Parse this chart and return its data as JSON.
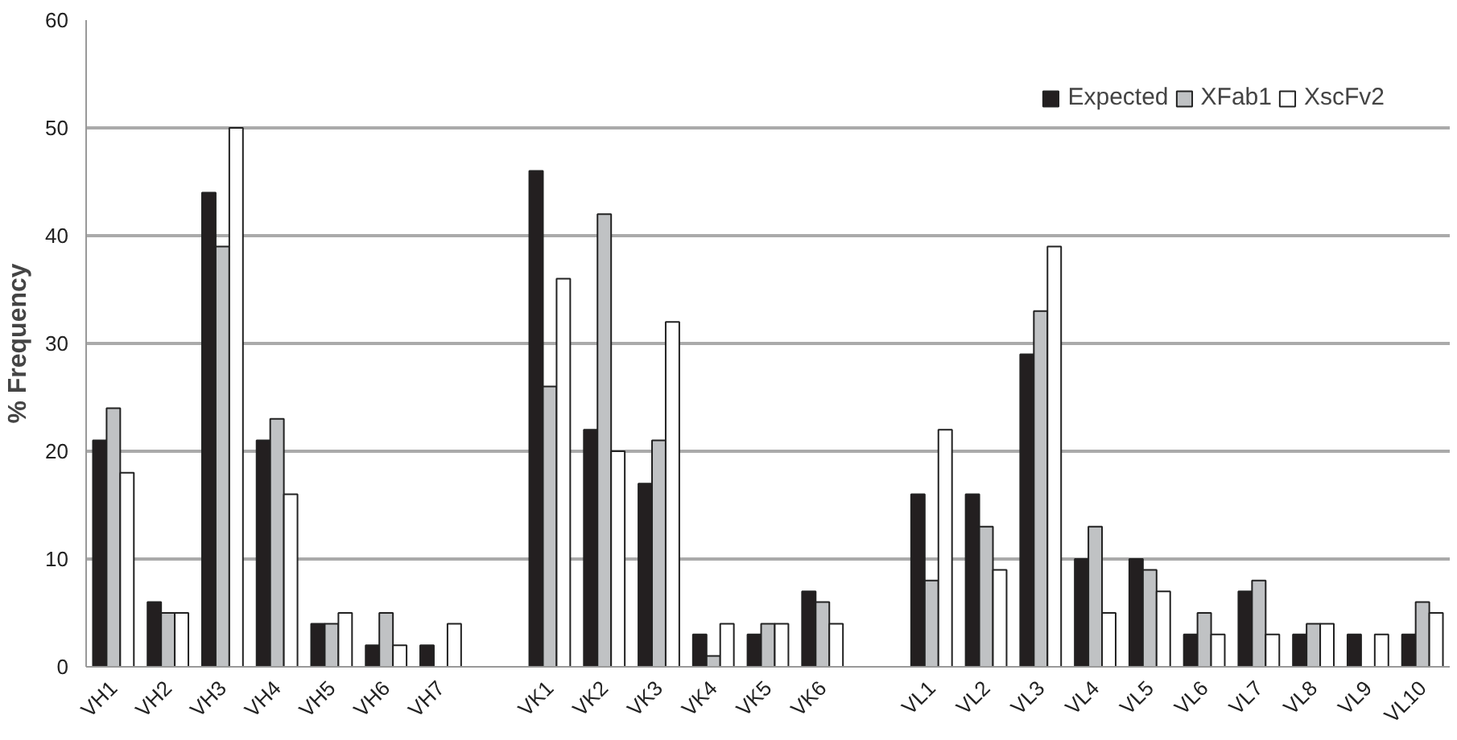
{
  "chart_data": {
    "type": "bar",
    "ylabel": "% Frequency",
    "categories": [
      "VH1",
      "VH2",
      "VH3",
      "VH4",
      "VH5",
      "VH6",
      "VH7",
      null,
      "VK1",
      "VK2",
      "VK3",
      "VK4",
      "VK5",
      "VK6",
      null,
      "VL1",
      "VL2",
      "VL3",
      "VL4",
      "VL5",
      "VL6",
      "VL7",
      "VL8",
      "VL9",
      "VL10"
    ],
    "series": [
      {
        "name": "Expected",
        "color": "#231f20",
        "values": [
          21,
          6,
          44,
          21,
          4,
          2,
          2,
          null,
          46,
          22,
          17,
          3,
          3,
          7,
          null,
          16,
          16,
          29,
          10,
          10,
          3,
          7,
          3,
          3,
          3
        ]
      },
      {
        "name": "XFab1",
        "color": "#c0c2c4",
        "values": [
          24,
          5,
          39,
          23,
          4,
          5,
          null,
          null,
          26,
          42,
          21,
          1,
          4,
          6,
          null,
          8,
          13,
          33,
          13,
          9,
          5,
          8,
          4,
          null,
          6
        ]
      },
      {
        "name": "XscFv2",
        "color": "#ffffff",
        "values": [
          18,
          5,
          50,
          16,
          5,
          2,
          4,
          null,
          36,
          20,
          32,
          4,
          4,
          4,
          null,
          22,
          9,
          39,
          5,
          7,
          3,
          3,
          4,
          3,
          5
        ]
      }
    ],
    "ylim": [
      0,
      60
    ],
    "yticks": [
      0,
      10,
      20,
      30,
      40,
      50,
      60
    ],
    "grid": "y",
    "legend": "top right"
  }
}
